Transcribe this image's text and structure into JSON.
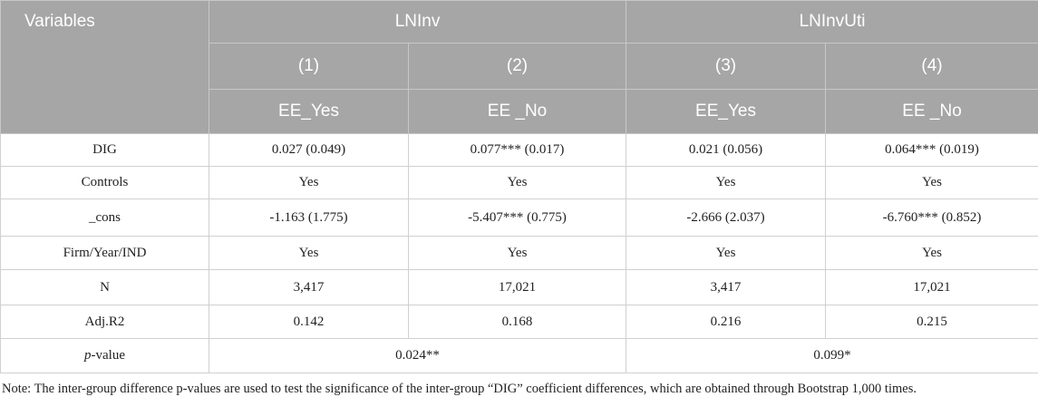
{
  "header": {
    "group_label": "Variables",
    "groups": [
      "LNInv",
      "LNInvUti"
    ],
    "models": [
      "(1)",
      "(2)",
      "(3)",
      "(4)"
    ],
    "samples": [
      "EE_Yes",
      "EE _No",
      "EE_Yes",
      "EE _No"
    ]
  },
  "table": {
    "rows": [
      [
        "DIG",
        "0.027 (0.049)",
        "0.077*** (0.017)",
        "0.021 (0.056)",
        "0.064*** (0.019)"
      ],
      [
        "Controls",
        "Yes",
        "Yes",
        "Yes",
        "Yes"
      ],
      [
        "_cons",
        "-1.163 (1.775)",
        "-5.407*** (0.775)",
        "-2.666 (2.037)",
        "-6.760*** (0.852)"
      ],
      [
        "Firm/Year/IND",
        "Yes",
        "Yes",
        "Yes",
        "Yes"
      ],
      [
        "N",
        "3,417",
        "17,021",
        "3,417",
        "17,021"
      ],
      [
        "Adj.R2",
        "0.142",
        "0.168",
        "0.216",
        "0.215"
      ]
    ]
  },
  "p_value": {
    "label_italic": "p",
    "label_rest": "-value",
    "values": [
      "0.024**",
      "0.099*"
    ]
  },
  "note": "Note: The inter-group difference p-values are used to test the significance of the inter-group “DIG” coefficient differences, which are obtained through Bootstrap 1,000 times."
}
